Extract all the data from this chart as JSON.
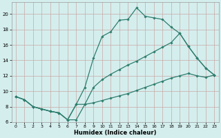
{
  "xlabel": "Humidex (Indice chaleur)",
  "bg_color": "#d4eeed",
  "line_color": "#2e7d6e",
  "grid_color_major": "#c8a8a8",
  "xlim": [
    -0.5,
    23.5
  ],
  "ylim": [
    6,
    21.5
  ],
  "xticks": [
    0,
    1,
    2,
    3,
    4,
    5,
    6,
    7,
    8,
    9,
    10,
    11,
    12,
    13,
    14,
    15,
    16,
    17,
    18,
    19,
    20,
    21,
    22,
    23
  ],
  "yticks": [
    6,
    8,
    10,
    12,
    14,
    16,
    18,
    20
  ],
  "line1_x": [
    0,
    1,
    2,
    3,
    4,
    5,
    6,
    7,
    8,
    9,
    10,
    11,
    12,
    13,
    14,
    15,
    16,
    17,
    18,
    19,
    20,
    21,
    22,
    23
  ],
  "line1_y": [
    9.3,
    8.9,
    8.0,
    7.7,
    7.4,
    7.2,
    6.3,
    8.3,
    10.5,
    14.3,
    17.1,
    17.7,
    19.2,
    19.3,
    20.8,
    19.7,
    19.5,
    19.3,
    18.3,
    17.5,
    15.8,
    14.3,
    13.0,
    12.1
  ],
  "line2_x": [
    0,
    1,
    2,
    3,
    4,
    5,
    6,
    7,
    8,
    9,
    10,
    11,
    12,
    13,
    14,
    15,
    16,
    17,
    18,
    19,
    20,
    21,
    22,
    23
  ],
  "line2_y": [
    9.3,
    8.9,
    8.0,
    7.7,
    7.4,
    7.2,
    6.3,
    8.3,
    8.3,
    10.5,
    11.5,
    12.2,
    12.8,
    13.4,
    13.9,
    14.5,
    15.1,
    15.7,
    16.3,
    17.5,
    15.8,
    14.3,
    13.0,
    12.1
  ],
  "line3_x": [
    0,
    1,
    2,
    3,
    4,
    5,
    6,
    7,
    8,
    9,
    10,
    11,
    12,
    13,
    14,
    15,
    16,
    17,
    18,
    19,
    20,
    21,
    22,
    23
  ],
  "line3_y": [
    9.3,
    8.9,
    8.0,
    7.7,
    7.4,
    7.2,
    6.3,
    6.3,
    8.3,
    8.5,
    8.8,
    9.1,
    9.4,
    9.7,
    10.1,
    10.5,
    10.9,
    11.3,
    11.7,
    12.0,
    12.3,
    12.0,
    11.8,
    12.1
  ]
}
